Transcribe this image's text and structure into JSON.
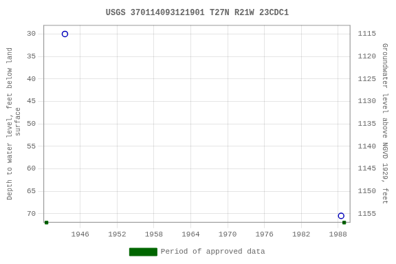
{
  "chart_data": {
    "type": "scatter",
    "title": "USGS 370114093121901 T27N R21W 23CDC1",
    "ylabel": "Depth to water level, feet below land\n surface",
    "y2label": "Groundwater level above NGVD 1929, feet",
    "xlim": [
      1940,
      1990
    ],
    "xticks": [
      1946,
      1952,
      1958,
      1964,
      1970,
      1976,
      1982,
      1988
    ],
    "ylim": [
      72,
      28
    ],
    "yticks": [
      30,
      35,
      40,
      45,
      50,
      55,
      60,
      65,
      70
    ],
    "y2lim": [
      1157,
      1113
    ],
    "y2ticks": [
      1155,
      1150,
      1145,
      1140,
      1135,
      1130,
      1125,
      1120,
      1115
    ],
    "grid": true,
    "legend": "bottom",
    "series": [
      {
        "x": [
          1943.5,
          1988.5
        ],
        "values": [
          30.0,
          70.5
        ],
        "color": "#0000bb",
        "marker": "circle"
      },
      {
        "name": "Period of approved data",
        "x": [
          1940.5,
          1989.0
        ],
        "values": [
          72,
          72
        ],
        "color": "#006600",
        "marker": "square"
      }
    ]
  }
}
